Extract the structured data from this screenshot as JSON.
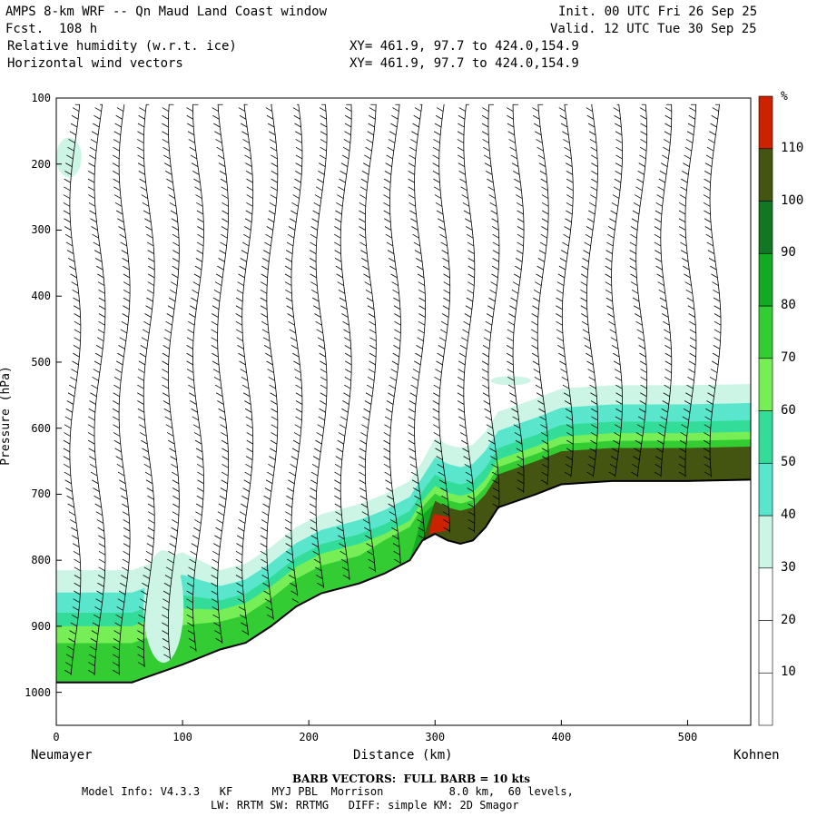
{
  "header": {
    "title": "AMPS 8-km WRF -- Qn Maud Land Coast window",
    "fcst": "Fcst.  108 h",
    "init": "Init. 00 UTC Fri 26 Sep 25",
    "valid": "Valid. 12 UTC Tue 30 Sep 25",
    "field1": "Relative humidity (w.r.t. ice)",
    "field2": "Horizontal wind vectors",
    "xy1": "XY= 461.9, 97.7 to 424.0,154.9",
    "xy2": "XY= 461.9, 97.7 to 424.0,154.9"
  },
  "chart_data": {
    "type": "heatmap",
    "title": "Relative humidity (w.r.t. ice) cross-section with horizontal wind vectors",
    "xlabel": "Distance (km)",
    "ylabel": "Pressure (hPa)",
    "xlim": [
      0,
      550
    ],
    "ylim": [
      1050,
      100
    ],
    "x_ticks": [
      0,
      100,
      200,
      300,
      400,
      500
    ],
    "y_ticks": [
      100,
      200,
      300,
      400,
      500,
      600,
      700,
      800,
      900,
      1000
    ],
    "x_endpoints": {
      "left": "Neumayer",
      "right": "Kohnen"
    },
    "colorbar": {
      "unit": "%",
      "levels": [
        10,
        20,
        30,
        40,
        50,
        60,
        70,
        80,
        90,
        100,
        110
      ],
      "colors": [
        "#ffffff",
        "#ffffff",
        "#ffffff",
        "#ccf5e6",
        "#59e6cc",
        "#33dd99",
        "#77ee55",
        "#33cc33",
        "#11aa22",
        "#117722",
        "#445511",
        "#cc2200"
      ]
    },
    "terrain_surface_hpa": [
      [
        0,
        985
      ],
      [
        60,
        985
      ],
      [
        70,
        978
      ],
      [
        100,
        958
      ],
      [
        130,
        935
      ],
      [
        150,
        925
      ],
      [
        170,
        900
      ],
      [
        190,
        870
      ],
      [
        210,
        850
      ],
      [
        240,
        835
      ],
      [
        260,
        820
      ],
      [
        280,
        800
      ],
      [
        290,
        770
      ],
      [
        300,
        760
      ],
      [
        310,
        770
      ],
      [
        320,
        775
      ],
      [
        330,
        770
      ],
      [
        340,
        750
      ],
      [
        350,
        720
      ],
      [
        380,
        700
      ],
      [
        400,
        685
      ],
      [
        440,
        680
      ],
      [
        500,
        680
      ],
      [
        550,
        678
      ]
    ],
    "rh_regions": [
      {
        "label": "moist layer near surface",
        "x": [
          0,
          550
        ],
        "p_top_approx": [
          810,
          530
        ]
      },
      {
        "label": "saturated peak >110%",
        "x": [
          295,
          312
        ],
        "p": [
          730,
          760
        ]
      }
    ]
  },
  "barb_note": "BARB VECTORS:  FULL BARB = 10 kts",
  "model_info": {
    "line1": "Model Info: V4.3.3   KF      MYJ PBL  Morrison          8.0 km,  60 levels,",
    "line2": "LW: RRTM SW: RRTMG   DIFF: simple KM: 2D Smagor"
  }
}
